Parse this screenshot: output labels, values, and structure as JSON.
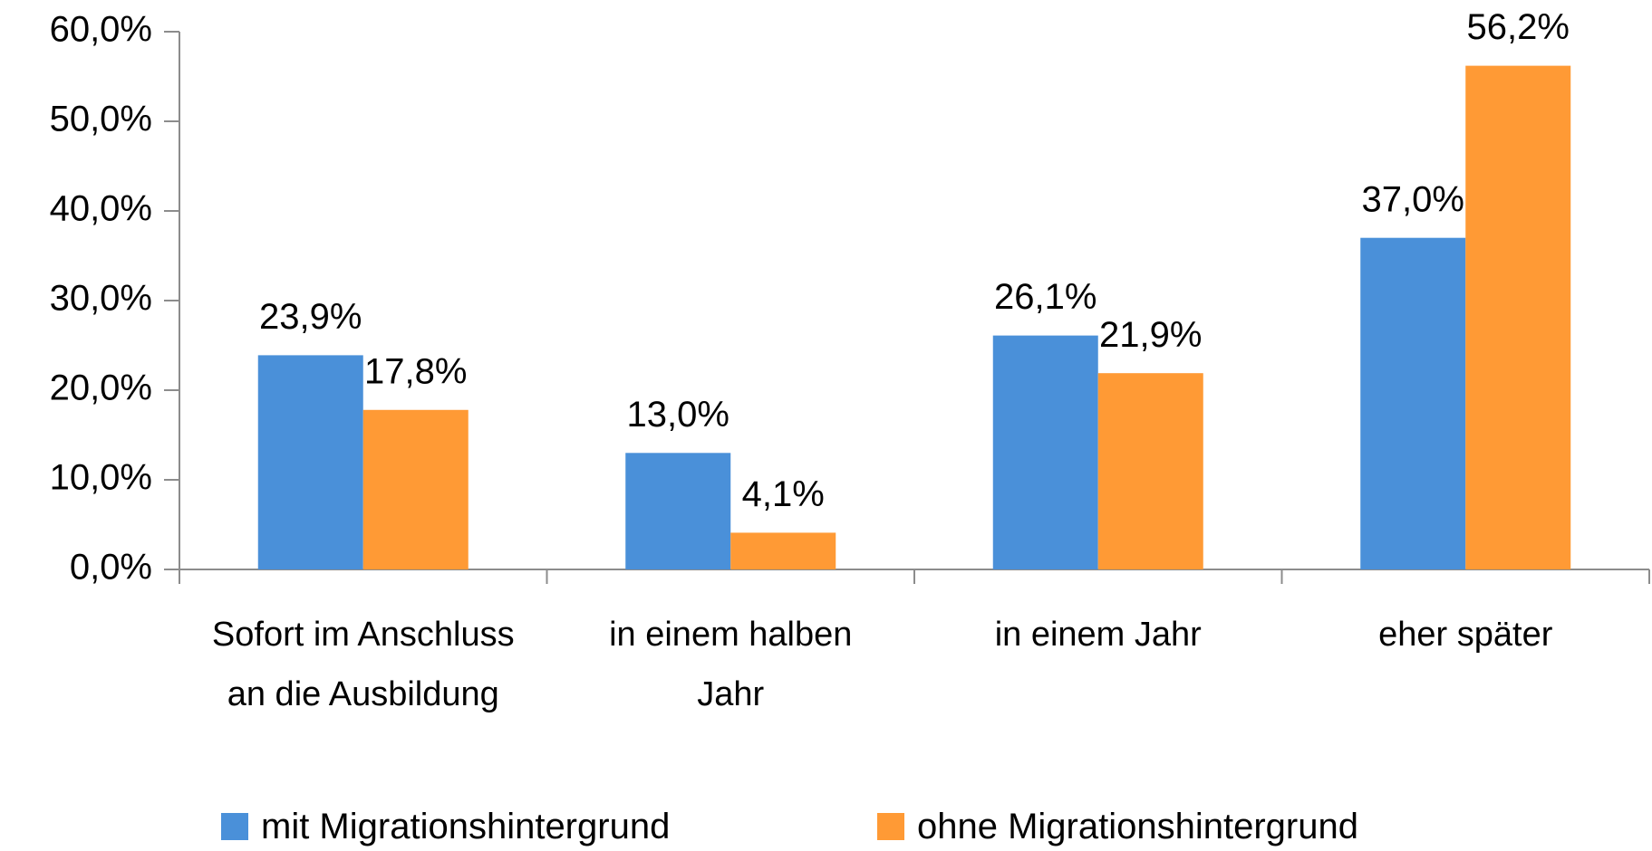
{
  "chart_data": {
    "type": "bar",
    "categories": [
      "Sofort im Anschluss an die Ausbildung",
      "in einem halben Jahr",
      "in einem Jahr",
      "eher später"
    ],
    "series": [
      {
        "name": "mit Migrationshintergrund",
        "color": "#4a90d9",
        "values": [
          23.9,
          13.0,
          26.1,
          37.0
        ],
        "value_labels": [
          "23,9%",
          "13,0%",
          "26,1%",
          "37,0%"
        ]
      },
      {
        "name": "ohne Migrationshintergrund",
        "color": "#ff9a35",
        "values": [
          17.8,
          4.1,
          21.9,
          56.2
        ],
        "value_labels": [
          "17,8%",
          "4,1%",
          "21,9%",
          "56,2%"
        ]
      }
    ],
    "ylim": [
      0,
      60
    ],
    "yticks": [
      {
        "value": 0,
        "label": "0,0%"
      },
      {
        "value": 10,
        "label": "10,0%"
      },
      {
        "value": 20,
        "label": "20,0%"
      },
      {
        "value": 30,
        "label": "30,0%"
      },
      {
        "value": 40,
        "label": "40,0%"
      },
      {
        "value": 50,
        "label": "50,0%"
      },
      {
        "value": 60,
        "label": "60,0%"
      }
    ],
    "legend": "bottom"
  }
}
